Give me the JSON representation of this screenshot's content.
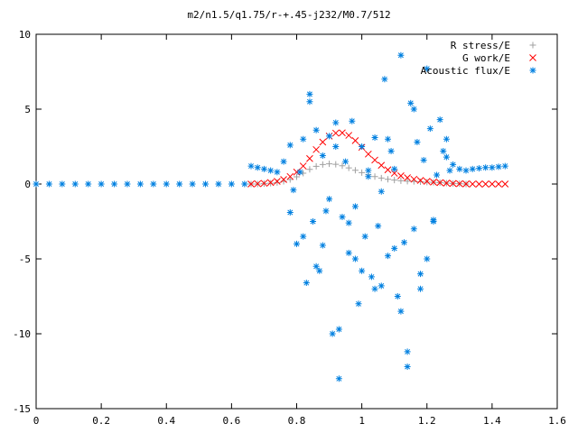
{
  "chart_data": {
    "type": "scatter",
    "title": "m2/n1.5/q1.75/r-+.45-j232/M0.7/512",
    "xlabel": "",
    "ylabel": "",
    "xlim": [
      0,
      1.6
    ],
    "ylim": [
      -15,
      10
    ],
    "x_ticks": [
      "0",
      "0.2",
      "0.4",
      "0.6",
      "0.8",
      "1",
      "1.2",
      "1.4",
      "1.6"
    ],
    "y_ticks": [
      "10",
      "5",
      "0",
      "-5",
      "-10",
      "-15"
    ],
    "grid": false,
    "legend_position": "top-right",
    "series": [
      {
        "name": "R stress/E",
        "marker": "+",
        "color": "#a0a0a0",
        "x": [
          0.66,
          0.68,
          0.7,
          0.72,
          0.74,
          0.76,
          0.78,
          0.8,
          0.82,
          0.84,
          0.86,
          0.88,
          0.9,
          0.92,
          0.94,
          0.96,
          0.98,
          1.0,
          1.02,
          1.04,
          1.06,
          1.08,
          1.1,
          1.12,
          1.14,
          1.16,
          1.18,
          1.2,
          1.22,
          1.24,
          1.26,
          1.28,
          1.3,
          1.32
        ],
        "y": [
          0.0,
          0.0,
          0.02,
          0.05,
          0.1,
          0.18,
          0.3,
          0.48,
          0.72,
          0.98,
          1.18,
          1.3,
          1.35,
          1.32,
          1.22,
          1.08,
          0.92,
          0.76,
          0.62,
          0.5,
          0.4,
          0.32,
          0.26,
          0.22,
          0.19,
          0.17,
          0.15,
          0.13,
          0.11,
          0.09,
          0.06,
          0.04,
          0.02,
          0.0
        ]
      },
      {
        "name": "G work/E",
        "marker": "x",
        "color": "#ff0000",
        "x": [
          0.66,
          0.68,
          0.7,
          0.72,
          0.74,
          0.76,
          0.78,
          0.8,
          0.82,
          0.84,
          0.86,
          0.88,
          0.9,
          0.92,
          0.94,
          0.96,
          0.98,
          1.0,
          1.02,
          1.04,
          1.06,
          1.08,
          1.1,
          1.12,
          1.14,
          1.16,
          1.18,
          1.2,
          1.22,
          1.24,
          1.26,
          1.28,
          1.3,
          1.32,
          1.34,
          1.36,
          1.38,
          1.4,
          1.42,
          1.44
        ],
        "y": [
          0.0,
          0.02,
          0.05,
          0.1,
          0.18,
          0.3,
          0.5,
          0.8,
          1.2,
          1.7,
          2.3,
          2.8,
          3.2,
          3.4,
          3.42,
          3.25,
          2.9,
          2.45,
          2.0,
          1.6,
          1.25,
          0.95,
          0.72,
          0.55,
          0.42,
          0.32,
          0.24,
          0.18,
          0.13,
          0.09,
          0.06,
          0.04,
          0.02,
          0.01,
          0.0,
          0.0,
          0.0,
          0.0,
          0.0,
          0.0
        ]
      },
      {
        "name": "Acoustic flux/E",
        "marker": "*",
        "color": "#0080e0",
        "x": [
          0.0,
          0.04,
          0.08,
          0.12,
          0.16,
          0.2,
          0.24,
          0.28,
          0.32,
          0.36,
          0.4,
          0.44,
          0.48,
          0.52,
          0.56,
          0.6,
          0.64,
          0.66,
          0.68,
          0.7,
          0.72,
          0.74,
          0.76,
          0.78,
          0.79,
          0.8,
          0.81,
          0.82,
          0.83,
          0.84,
          0.85,
          0.86,
          0.87,
          0.88,
          0.89,
          0.9,
          0.91,
          0.92,
          0.93,
          0.94,
          0.95,
          0.96,
          0.97,
          0.98,
          0.99,
          1.0,
          1.01,
          1.02,
          1.03,
          1.04,
          1.05,
          1.06,
          1.07,
          1.08,
          1.09,
          1.1,
          1.11,
          1.12,
          1.13,
          1.14,
          1.15,
          1.16,
          1.17,
          1.18,
          1.19,
          1.2,
          1.21,
          1.22,
          1.23,
          1.24,
          1.25,
          1.26,
          1.27,
          1.28,
          1.3,
          1.32,
          1.34,
          1.36,
          1.38,
          1.4,
          1.42,
          1.44,
          0.84,
          0.86,
          0.92,
          0.93,
          0.96,
          0.98,
          1.04,
          1.06,
          1.08,
          1.12,
          1.14,
          1.16,
          1.18,
          1.2,
          1.22,
          0.78,
          0.82,
          0.88,
          0.9,
          1.0,
          1.02,
          1.1,
          1.26
        ],
        "y": [
          0.0,
          0.0,
          0.0,
          0.0,
          0.0,
          0.0,
          0.0,
          0.0,
          0.0,
          0.0,
          0.0,
          0.0,
          0.0,
          0.0,
          0.0,
          0.0,
          0.0,
          1.2,
          1.1,
          1.0,
          0.9,
          0.8,
          1.5,
          2.6,
          -0.4,
          -4.0,
          0.8,
          3.0,
          -6.6,
          6.0,
          -2.5,
          3.6,
          -5.8,
          1.9,
          -1.8,
          3.2,
          -10.0,
          4.1,
          -13.0,
          -2.2,
          1.5,
          -4.6,
          4.2,
          -1.5,
          -8.0,
          2.5,
          -3.5,
          0.5,
          -6.2,
          3.1,
          -2.8,
          -0.5,
          7.0,
          -4.8,
          2.2,
          1.0,
          -7.5,
          8.6,
          -3.9,
          -11.2,
          5.4,
          -3.0,
          2.8,
          -7.0,
          1.6,
          -5.0,
          3.7,
          -2.5,
          0.6,
          4.3,
          2.2,
          1.8,
          0.9,
          1.3,
          1.0,
          0.9,
          1.0,
          1.05,
          1.1,
          1.1,
          1.15,
          1.2,
          5.5,
          -5.5,
          2.5,
          -9.7,
          -2.6,
          -5.0,
          -7.0,
          -6.8,
          3.0,
          -8.5,
          -12.2,
          5.0,
          -6.0,
          7.7,
          -2.4,
          -1.9,
          -3.5,
          -4.1,
          -1.0,
          -5.8,
          0.9,
          -4.3,
          3.0
        ]
      }
    ]
  }
}
